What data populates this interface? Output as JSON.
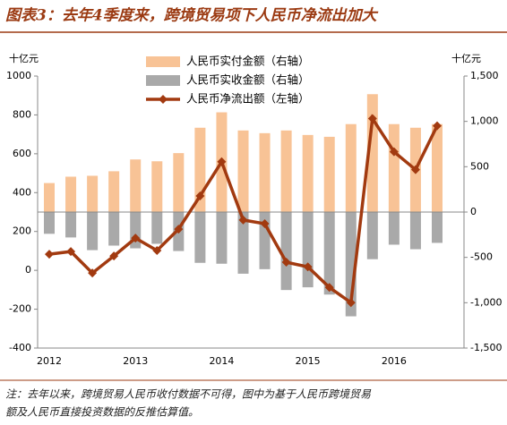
{
  "chart_data": {
    "type": "bar_line",
    "title": "图表3：去年4季度来，跨境贸易项下人民币净流出加大",
    "y_label": "十亿元",
    "y2_label": "十亿元",
    "categories": [
      "2012",
      null,
      null,
      null,
      "2013",
      null,
      null,
      null,
      "2014",
      null,
      null,
      null,
      "2015",
      null,
      null,
      null,
      "2016",
      null,
      null
    ],
    "series": [
      {
        "name": "人民币实付金额（右轴）",
        "kind": "bar",
        "axis": "y2",
        "color": "#f8c396",
        "values": [
          320,
          390,
          400,
          450,
          580,
          560,
          650,
          930,
          1100,
          900,
          870,
          900,
          850,
          830,
          970,
          1300,
          970,
          930,
          970
        ]
      },
      {
        "name": "人民币实收金额（右轴）",
        "kind": "bar",
        "axis": "y2",
        "color": "#a9a9a9",
        "values": [
          -240,
          -280,
          -420,
          -370,
          -400,
          -350,
          -430,
          -560,
          -570,
          -680,
          -630,
          -860,
          -830,
          -910,
          -1150,
          -520,
          -360,
          -410,
          -340
        ]
      },
      {
        "name": "人民币净流出额（左轴）",
        "kind": "line",
        "axis": "y",
        "color": "#a23a10",
        "values": [
          83,
          97,
          -14,
          74,
          166,
          102,
          212,
          383,
          559,
          259,
          240,
          42,
          18,
          -88,
          -166,
          781,
          610,
          518,
          744
        ]
      }
    ],
    "ylim": [
      -400,
      1000
    ],
    "yticks": [
      -400,
      -200,
      0,
      200,
      400,
      600,
      800,
      1000
    ],
    "y2lim": [
      -1500,
      1500
    ],
    "y2ticks": [
      {
        "value": -1500,
        "label": "-1,500"
      },
      {
        "value": -1000,
        "label": "-1,000"
      },
      -500,
      0,
      500,
      {
        "value": 1000,
        "label": "1,000"
      },
      {
        "value": 1500,
        "label": "1,500"
      }
    ],
    "note": [
      "注：去年以来，跨境贸易人民币收付数据不可得，图中为基于人民币跨境贸易",
      "额及人民币直接投资数据的反推估算值。"
    ]
  }
}
